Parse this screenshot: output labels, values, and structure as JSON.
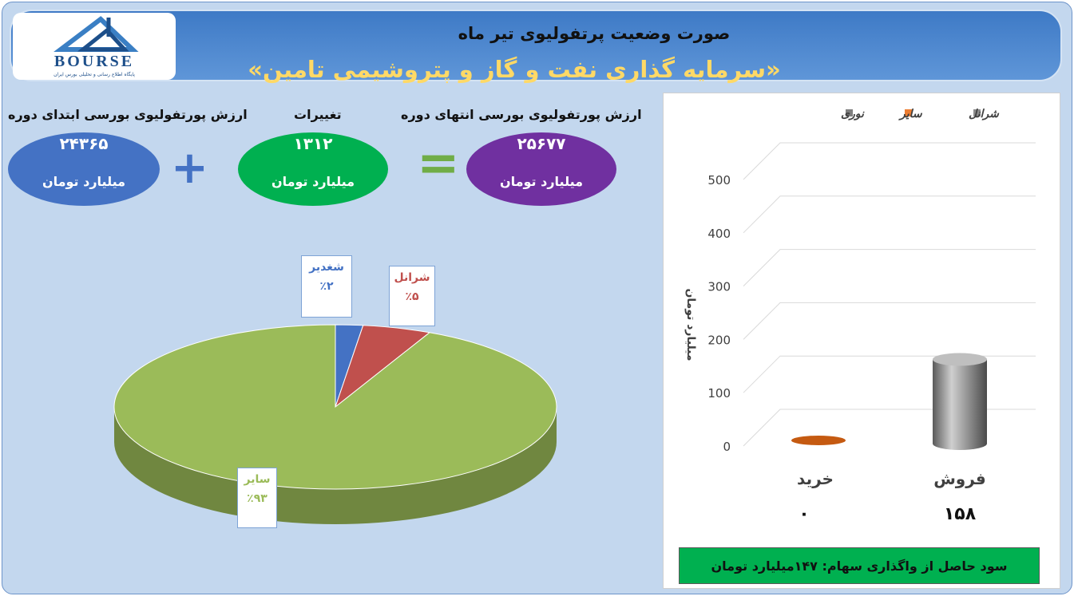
{
  "header": {
    "title": "صورت وضعیت پرتفولیوی تیر ماه",
    "subtitle": "«سرمایه گذاری نفت و گاز و پتروشیمی تامین»",
    "logo_text": "BOURSE",
    "logo_subtext": "پایگاه اطلاع رسانی و تحلیلی بورس ایران"
  },
  "summary": {
    "start_label": "ارزش پورتفولیوی بورسی ابتدای دوره",
    "start_value": "۲۴۳۶۵",
    "change_label": "تغییرات",
    "change_value": "۱۳۱۲",
    "end_label": "ارزش پورتفولیوی بورسی انتهای دوره",
    "end_value": "۲۵۶۷۷",
    "unit": "میلیارد تومان",
    "plus_sign": "+",
    "equals_sign": "=",
    "colors": {
      "start": "#4472c4",
      "change": "#00b050",
      "end": "#7030a0"
    }
  },
  "chart_data": [
    {
      "type": "pie",
      "categories": [
        "شغدیر",
        "شرانل",
        "سایر"
      ],
      "values": [
        2,
        5,
        93
      ],
      "labels": [
        "٪۲",
        "٪۵",
        "٪۹۳"
      ],
      "colors": [
        "#4472c4",
        "#c0504d",
        "#9bbb59"
      ],
      "label_colors": [
        "#4472c4",
        "#c0504d",
        "#9bbb59"
      ]
    },
    {
      "type": "bar",
      "categories": [
        "خرید",
        "فروش"
      ],
      "series": [
        {
          "name": "شرانل",
          "values": [
            0,
            158
          ],
          "color": "#8c8c8c"
        },
        {
          "name": "سایر",
          "values": [
            0,
            0
          ],
          "color": "#ed7d31"
        },
        {
          "name": "نوری",
          "values": [
            0,
            0
          ],
          "color": "#7f7f7f"
        }
      ],
      "value_labels": [
        "۰",
        "۱۵۸"
      ],
      "ylabel": "میلیارد تومان",
      "ylim": [
        0,
        500
      ],
      "yticks": [
        0,
        100,
        200,
        300,
        400,
        500
      ],
      "legend_position": "top"
    }
  ],
  "footer": {
    "profit_text": "سود حاصل از واگذاری سهام: ۱۴۷میلیارد تومان"
  }
}
